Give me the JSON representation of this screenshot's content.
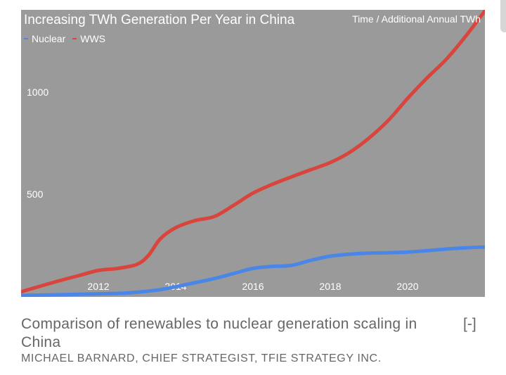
{
  "chart_data": {
    "type": "line",
    "title": "Increasing TWh Generation Per Year in China",
    "subtitle": "Time / Additional Annual TWh",
    "y_ticks": [
      500,
      1000
    ],
    "x_ticks": [
      2012,
      2014,
      2016,
      2018,
      2020
    ],
    "xlim": [
      2010.0,
      2022.0
    ],
    "ylim": [
      -5,
      1405
    ],
    "grid": false,
    "legend_position": "top-left",
    "series": [
      {
        "name": "Nuclear",
        "color": "#4a86e8",
        "x": [
          2010.0,
          2011.0,
          2012.0,
          2012.8,
          2013.5,
          2014.0,
          2014.5,
          2015.0,
          2015.5,
          2016.0,
          2016.5,
          2017.0,
          2017.5,
          2018.0,
          2018.5,
          2019.0,
          2019.5,
          2020.0,
          2020.5,
          2021.0,
          2021.5,
          2022.0
        ],
        "y": [
          2,
          6,
          10,
          15,
          28,
          45,
          65,
          85,
          110,
          135,
          145,
          150,
          175,
          195,
          205,
          210,
          212,
          215,
          222,
          230,
          236,
          240
        ]
      },
      {
        "name": "WWS",
        "color": "#d9453d",
        "x": [
          2010.0,
          2010.5,
          2011.0,
          2011.5,
          2012.0,
          2012.5,
          2013.0,
          2013.3,
          2013.6,
          2014.0,
          2014.5,
          2015.0,
          2015.5,
          2016.0,
          2016.5,
          2017.0,
          2017.5,
          2018.0,
          2018.5,
          2019.0,
          2019.5,
          2020.0,
          2020.5,
          2021.0,
          2021.5,
          2022.0
        ],
        "y": [
          20,
          48,
          75,
          100,
          125,
          135,
          155,
          200,
          280,
          335,
          370,
          390,
          445,
          505,
          548,
          585,
          620,
          655,
          705,
          775,
          862,
          970,
          1070,
          1162,
          1275,
          1400
        ]
      }
    ]
  },
  "caption": {
    "text": "Comparison of renewables to nuclear generation scaling in China",
    "credit": "MICHAEL BARNARD, CHIEF STRATEGIST, TFIE STRATEGY INC.",
    "collapse_label": "[-]"
  }
}
